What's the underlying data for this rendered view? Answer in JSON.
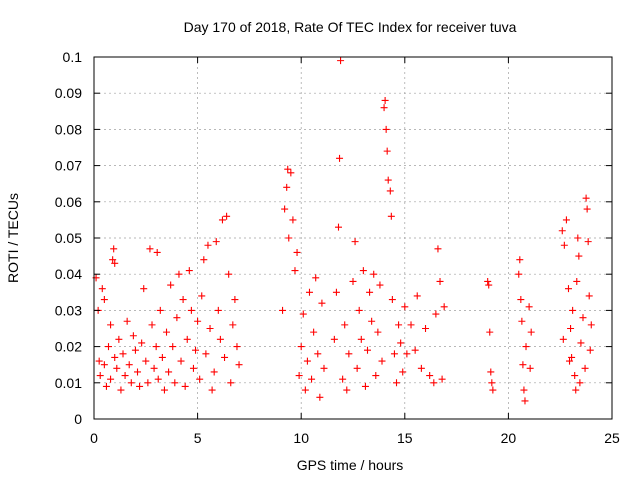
{
  "chart_data": {
    "type": "scatter",
    "title": "Day 170 of 2018, Rate Of TEC Index for receiver tuva",
    "xlabel": "GPS time / hours",
    "ylabel": "ROTI / TECUs",
    "xlim": [
      0,
      25
    ],
    "ylim": [
      0,
      0.1
    ],
    "x_ticks": [
      "0",
      "5",
      "10",
      "15",
      "20",
      "25"
    ],
    "y_ticks": [
      "0",
      "0.01",
      "0.02",
      "0.03",
      "0.04",
      "0.05",
      "0.06",
      "0.07",
      "0.08",
      "0.09",
      "0.1"
    ],
    "grid": true,
    "marker": "+",
    "color": "#ff0000",
    "series": [
      {
        "values": [
          [
            0.1,
            0.039
          ],
          [
            0.2,
            0.03
          ],
          [
            0.25,
            0.016
          ],
          [
            0.3,
            0.012
          ],
          [
            0.4,
            0.036
          ],
          [
            0.5,
            0.033
          ],
          [
            0.5,
            0.015
          ],
          [
            0.6,
            0.009
          ],
          [
            0.7,
            0.02
          ],
          [
            0.8,
            0.026
          ],
          [
            0.8,
            0.011
          ],
          [
            0.9,
            0.044
          ],
          [
            0.95,
            0.047
          ],
          [
            1.0,
            0.043
          ],
          [
            1.0,
            0.017
          ],
          [
            1.1,
            0.014
          ],
          [
            1.2,
            0.022
          ],
          [
            1.3,
            0.008
          ],
          [
            1.4,
            0.018
          ],
          [
            1.5,
            0.012
          ],
          [
            1.6,
            0.027
          ],
          [
            1.7,
            0.015
          ],
          [
            1.8,
            0.01
          ],
          [
            1.9,
            0.023
          ],
          [
            2.0,
            0.019
          ],
          [
            2.1,
            0.013
          ],
          [
            2.2,
            0.009
          ],
          [
            2.3,
            0.021
          ],
          [
            2.4,
            0.036
          ],
          [
            2.5,
            0.016
          ],
          [
            2.6,
            0.01
          ],
          [
            2.7,
            0.047
          ],
          [
            2.8,
            0.026
          ],
          [
            2.9,
            0.014
          ],
          [
            3.0,
            0.02
          ],
          [
            3.05,
            0.046
          ],
          [
            3.1,
            0.011
          ],
          [
            3.2,
            0.03
          ],
          [
            3.3,
            0.017
          ],
          [
            3.4,
            0.008
          ],
          [
            3.5,
            0.024
          ],
          [
            3.6,
            0.013
          ],
          [
            3.7,
            0.037
          ],
          [
            3.8,
            0.02
          ],
          [
            3.9,
            0.01
          ],
          [
            4.0,
            0.028
          ],
          [
            4.1,
            0.04
          ],
          [
            4.2,
            0.016
          ],
          [
            4.3,
            0.033
          ],
          [
            4.4,
            0.009
          ],
          [
            4.5,
            0.022
          ],
          [
            4.6,
            0.041
          ],
          [
            4.7,
            0.03
          ],
          [
            4.8,
            0.014
          ],
          [
            4.9,
            0.019
          ],
          [
            5.0,
            0.027
          ],
          [
            5.1,
            0.011
          ],
          [
            5.2,
            0.034
          ],
          [
            5.3,
            0.044
          ],
          [
            5.4,
            0.018
          ],
          [
            5.5,
            0.048
          ],
          [
            5.6,
            0.025
          ],
          [
            5.7,
            0.008
          ],
          [
            5.8,
            0.013
          ],
          [
            5.9,
            0.049
          ],
          [
            6.0,
            0.03
          ],
          [
            6.1,
            0.022
          ],
          [
            6.2,
            0.055
          ],
          [
            6.3,
            0.017
          ],
          [
            6.4,
            0.056
          ],
          [
            6.5,
            0.04
          ],
          [
            6.6,
            0.01
          ],
          [
            6.7,
            0.026
          ],
          [
            6.8,
            0.033
          ],
          [
            6.9,
            0.02
          ],
          [
            7.0,
            0.015
          ],
          [
            9.1,
            0.03
          ],
          [
            9.2,
            0.058
          ],
          [
            9.3,
            0.064
          ],
          [
            9.35,
            0.069
          ],
          [
            9.4,
            0.05
          ],
          [
            9.5,
            0.068
          ],
          [
            9.6,
            0.055
          ],
          [
            9.7,
            0.041
          ],
          [
            9.8,
            0.046
          ],
          [
            9.9,
            0.012
          ],
          [
            10.0,
            0.02
          ],
          [
            10.1,
            0.029
          ],
          [
            10.2,
            0.008
          ],
          [
            10.3,
            0.016
          ],
          [
            10.4,
            0.035
          ],
          [
            10.5,
            0.011
          ],
          [
            10.6,
            0.024
          ],
          [
            10.7,
            0.039
          ],
          [
            10.8,
            0.018
          ],
          [
            10.9,
            0.006
          ],
          [
            11.0,
            0.032
          ],
          [
            11.1,
            0.014
          ],
          [
            11.6,
            0.022
          ],
          [
            11.7,
            0.035
          ],
          [
            11.8,
            0.053
          ],
          [
            11.85,
            0.072
          ],
          [
            11.9,
            0.099
          ],
          [
            12.0,
            0.011
          ],
          [
            12.1,
            0.026
          ],
          [
            12.2,
            0.008
          ],
          [
            12.3,
            0.018
          ],
          [
            12.5,
            0.038
          ],
          [
            12.6,
            0.049
          ],
          [
            12.7,
            0.014
          ],
          [
            12.8,
            0.03
          ],
          [
            12.9,
            0.022
          ],
          [
            13.0,
            0.041
          ],
          [
            13.1,
            0.009
          ],
          [
            13.2,
            0.019
          ],
          [
            13.3,
            0.035
          ],
          [
            13.4,
            0.027
          ],
          [
            13.5,
            0.04
          ],
          [
            13.6,
            0.012
          ],
          [
            13.7,
            0.024
          ],
          [
            13.8,
            0.037
          ],
          [
            13.9,
            0.016
          ],
          [
            14.0,
            0.086
          ],
          [
            14.05,
            0.088
          ],
          [
            14.1,
            0.08
          ],
          [
            14.15,
            0.074
          ],
          [
            14.2,
            0.066
          ],
          [
            14.3,
            0.063
          ],
          [
            14.35,
            0.056
          ],
          [
            14.4,
            0.033
          ],
          [
            14.5,
            0.018
          ],
          [
            14.6,
            0.01
          ],
          [
            14.7,
            0.026
          ],
          [
            14.8,
            0.021
          ],
          [
            14.9,
            0.013
          ],
          [
            15.0,
            0.031
          ],
          [
            15.1,
            0.018
          ],
          [
            15.3,
            0.026
          ],
          [
            15.5,
            0.019
          ],
          [
            15.6,
            0.034
          ],
          [
            15.8,
            0.014
          ],
          [
            16.0,
            0.025
          ],
          [
            16.2,
            0.012
          ],
          [
            16.4,
            0.01
          ],
          [
            16.5,
            0.029
          ],
          [
            16.6,
            0.047
          ],
          [
            16.7,
            0.038
          ],
          [
            16.8,
            0.011
          ],
          [
            16.9,
            0.031
          ],
          [
            19.0,
            0.038
          ],
          [
            19.05,
            0.037
          ],
          [
            19.1,
            0.024
          ],
          [
            19.15,
            0.013
          ],
          [
            19.2,
            0.01
          ],
          [
            19.25,
            0.008
          ],
          [
            20.5,
            0.04
          ],
          [
            20.55,
            0.044
          ],
          [
            20.6,
            0.033
          ],
          [
            20.65,
            0.027
          ],
          [
            20.7,
            0.015
          ],
          [
            20.75,
            0.008
          ],
          [
            20.8,
            0.005
          ],
          [
            20.85,
            0.02
          ],
          [
            21.0,
            0.031
          ],
          [
            21.05,
            0.014
          ],
          [
            21.1,
            0.024
          ],
          [
            22.6,
            0.052
          ],
          [
            22.7,
            0.048
          ],
          [
            22.8,
            0.055
          ],
          [
            22.9,
            0.036
          ],
          [
            23.0,
            0.025
          ],
          [
            23.05,
            0.017
          ],
          [
            23.1,
            0.03
          ],
          [
            23.2,
            0.012
          ],
          [
            23.3,
            0.038
          ],
          [
            23.35,
            0.05
          ],
          [
            23.4,
            0.045
          ],
          [
            23.5,
            0.021
          ],
          [
            23.6,
            0.028
          ],
          [
            23.7,
            0.014
          ],
          [
            23.75,
            0.061
          ],
          [
            23.8,
            0.058
          ],
          [
            23.85,
            0.049
          ],
          [
            23.9,
            0.034
          ],
          [
            24.0,
            0.026
          ],
          [
            23.95,
            0.019
          ],
          [
            23.45,
            0.01
          ],
          [
            23.25,
            0.008
          ],
          [
            22.95,
            0.016
          ],
          [
            22.65,
            0.022
          ]
        ]
      }
    ]
  }
}
